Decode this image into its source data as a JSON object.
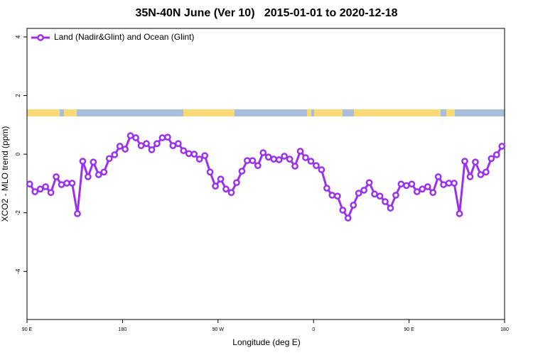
{
  "chart_data": {
    "type": "line",
    "title": "35N-40N June (Ver 10)   2015-01-01 to 2020-12-18",
    "x_label": "Longitude (deg E)",
    "y_label": "XCO2 - MLO trend (ppm)",
    "x": [
      92.5,
      97.5,
      102.5,
      107.5,
      112.5,
      117.5,
      122.5,
      127.5,
      132.5,
      137.5,
      142.5,
      147.5,
      152.5,
      157.5,
      162.5,
      167.5,
      172.5,
      177.5,
      182.5,
      187.5,
      192.5,
      197.5,
      202.5,
      207.5,
      212.5,
      217.5,
      222.5,
      227.5,
      232.5,
      237.5,
      242.5,
      247.5,
      252.5,
      257.5,
      262.5,
      267.5,
      272.5,
      277.5,
      282.5,
      287.5,
      292.5,
      297.5,
      302.5,
      307.5,
      312.5,
      317.5,
      322.5,
      327.5,
      332.5,
      337.5,
      342.5,
      347.5,
      352.5,
      357.5,
      362.5,
      367.5,
      372.5,
      377.5,
      382.5,
      387.5,
      392.5,
      397.5,
      402.5,
      407.5,
      412.5,
      417.5,
      422.5,
      427.5,
      432.5,
      437.5,
      442.5,
      447.5,
      452.5,
      457.5,
      462.5,
      467.5,
      472.5,
      477.5,
      482.5,
      487.5,
      492.5,
      497.5,
      502.5,
      507.5,
      512.5,
      517.5,
      522.5,
      527.5,
      532.5,
      537.5
    ],
    "series": [
      {
        "name": "Land (Nadir&Glint) and Ocean (Glint)",
        "color": "#9b30ee",
        "values": [
          -1.02,
          -1.28,
          -1.19,
          -1.11,
          -1.31,
          -0.77,
          -1.04,
          -0.99,
          -0.99,
          -2.03,
          -0.24,
          -0.77,
          -0.27,
          -0.7,
          -0.61,
          -0.15,
          -0.02,
          0.27,
          0.17,
          0.63,
          0.56,
          0.29,
          0.36,
          0.15,
          0.36,
          0.56,
          0.58,
          0.29,
          0.36,
          0.12,
          0.02,
          0,
          -0.17,
          -0.05,
          -0.61,
          -1.09,
          -0.85,
          -1.19,
          -1.31,
          -0.97,
          -0.58,
          -0.22,
          -0.22,
          -0.39,
          0.05,
          -0.1,
          -0.17,
          -0.19,
          -0.07,
          -0.17,
          -0.41,
          0.1,
          -0.12,
          -0.24,
          -0.39,
          -0.53,
          -1.16,
          -1.4,
          -1.43,
          -1.91,
          -2.18,
          -1.74,
          -1.33,
          -1.23,
          -0.97,
          -1.36,
          -1.43,
          -1.62,
          -1.84,
          -1.4,
          -1.02,
          -1.07,
          -1.02,
          -1.28,
          -1.19,
          -1.11,
          -1.31,
          -0.77,
          -1.04,
          -0.99,
          -0.99,
          -2.03,
          -0.24,
          -0.77,
          -0.27,
          -0.7,
          -0.61,
          -0.15,
          -0.02,
          0.27
        ]
      }
    ],
    "xlim": [
      90,
      540
    ],
    "ylim": [
      -5.64,
      4.29
    ],
    "xticks": [
      {
        "value": 90,
        "label": "90 E"
      },
      180,
      {
        "value": 270,
        "label": "90 W"
      },
      {
        "value": 360,
        "label": "0"
      },
      {
        "value": 450,
        "label": "90 E"
      },
      {
        "value": 540,
        "label": "180"
      }
    ],
    "yticks": [
      -4,
      -2,
      0,
      2,
      4
    ],
    "legend": "topleft"
  }
}
